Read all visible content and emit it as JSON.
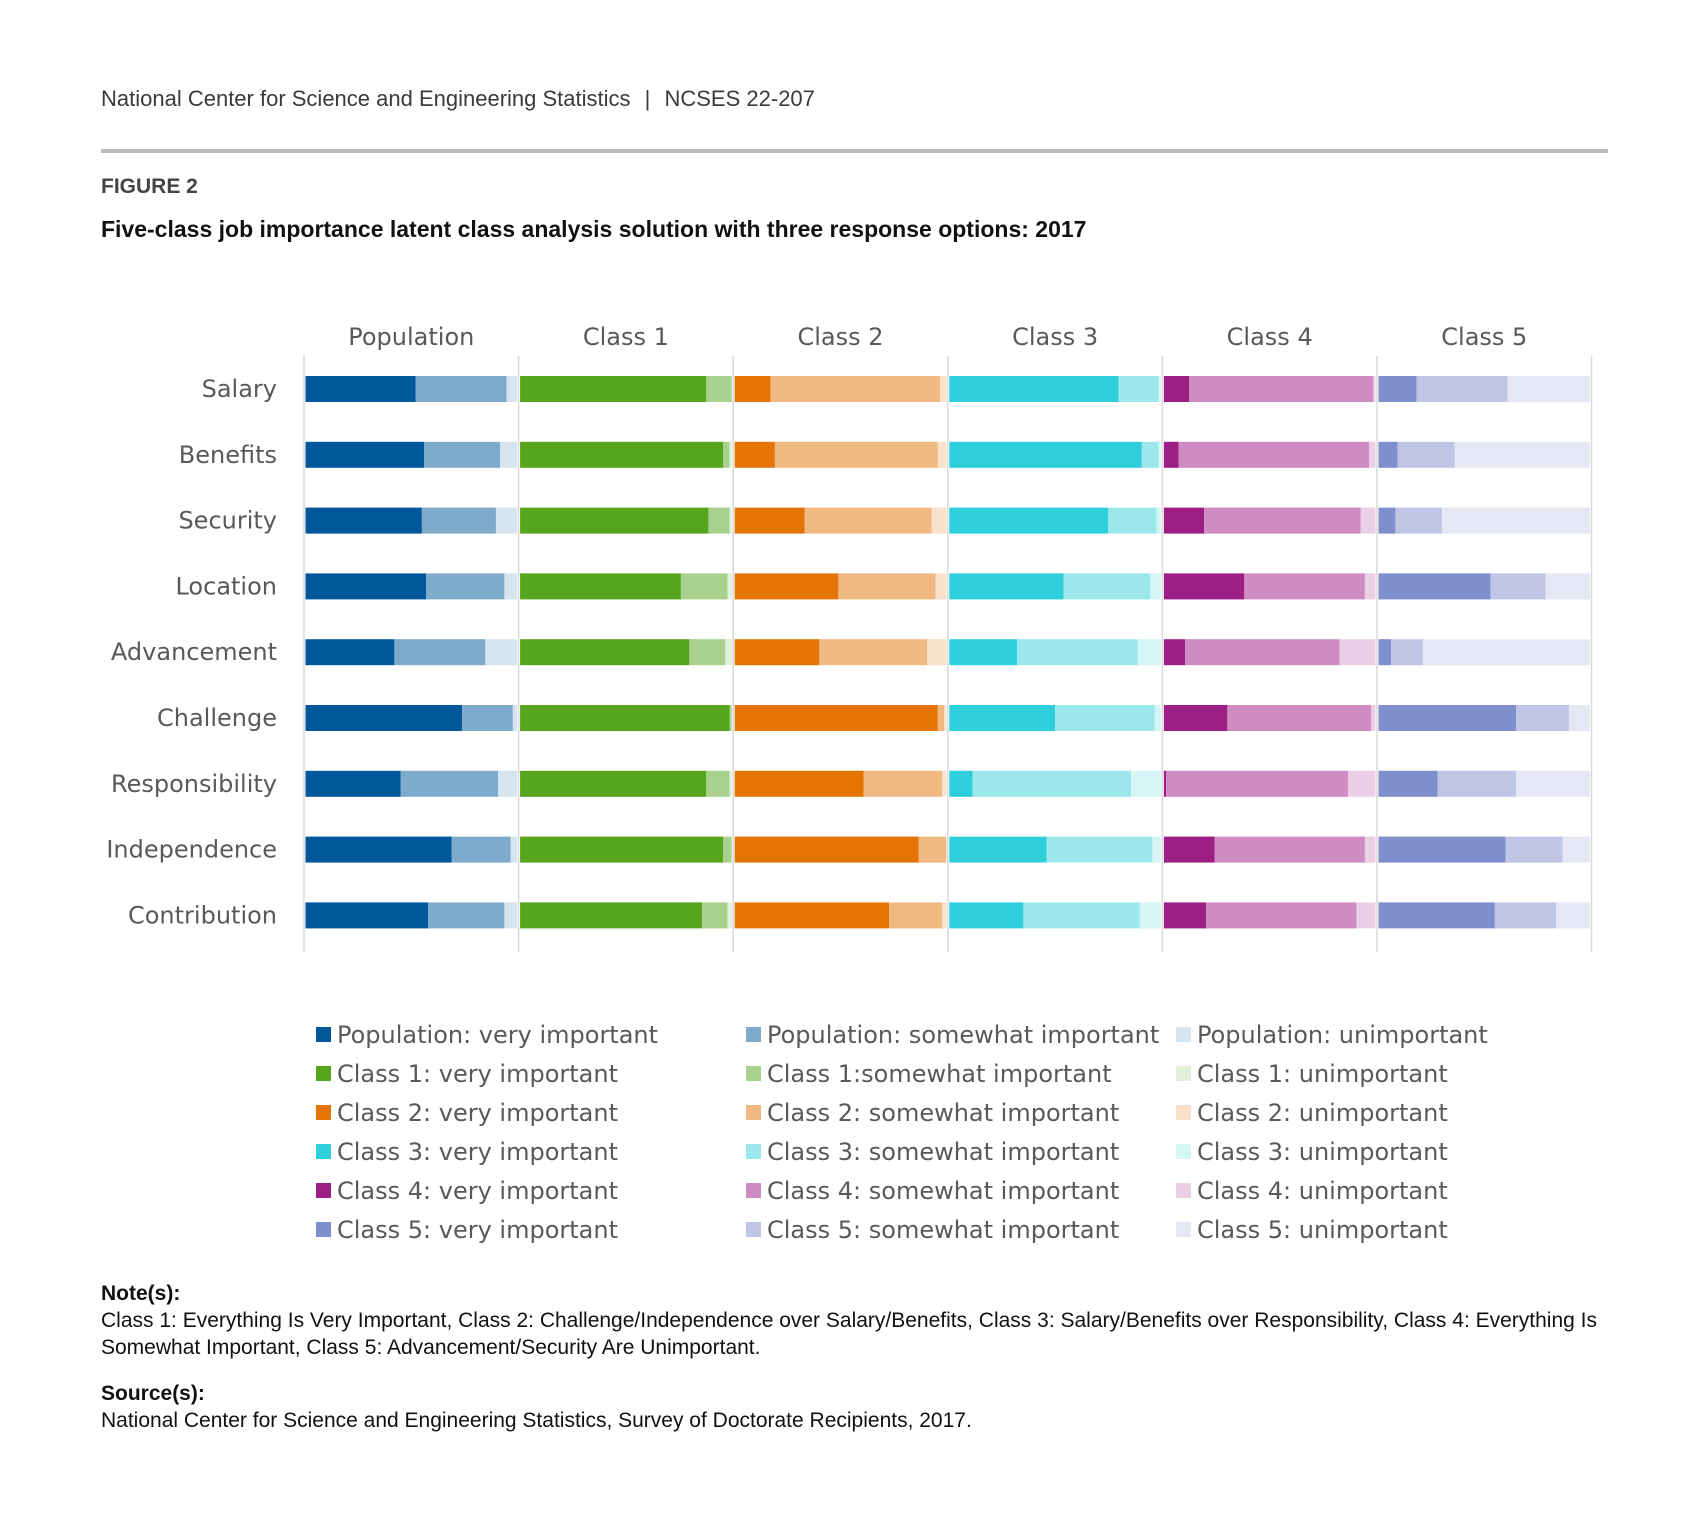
{
  "header": {
    "org": "National Center for Science and Engineering Statistics",
    "separator": "|",
    "report_id": "NCSES 22-207",
    "figure_label": "FIGURE 2",
    "title": "Five-class job importance latent class analysis solution with three response options: 2017"
  },
  "chart_data": {
    "type": "bar",
    "orientation": "horizontal",
    "stacked": true,
    "title": "Five-class job importance latent class analysis solution with three response options: 2017",
    "xlabel": "",
    "ylabel": "",
    "xlim": [
      0,
      1
    ],
    "grid": false,
    "legend_position": "bottom",
    "categories": [
      "Salary",
      "Benefits",
      "Security",
      "Location",
      "Advancement",
      "Challenge",
      "Responsibility",
      "Independence",
      "Contribution"
    ],
    "panels": [
      {
        "name": "Population",
        "colors": {
          "very important": "#00579a",
          "somewhat important": "#7eaacc",
          "unimportant": "#d6e4f0"
        },
        "series": [
          {
            "name": "very important",
            "values": [
              0.52,
              0.56,
              0.55,
              0.57,
              0.42,
              0.74,
              0.45,
              0.69,
              0.58
            ]
          },
          {
            "name": "somewhat important",
            "values": [
              0.43,
              0.36,
              0.35,
              0.37,
              0.43,
              0.24,
              0.46,
              0.28,
              0.36
            ]
          },
          {
            "name": "unimportant",
            "values": [
              0.05,
              0.08,
              0.1,
              0.06,
              0.15,
              0.02,
              0.09,
              0.03,
              0.06
            ]
          }
        ]
      },
      {
        "name": "Class 1",
        "colors": {
          "very important": "#56a51c",
          "somewhat important": "#a8d18d",
          "unimportant": "#e2f0d9"
        },
        "series": [
          {
            "name": "very important",
            "values": [
              0.88,
              0.96,
              0.89,
              0.76,
              0.8,
              0.99,
              0.88,
              0.96,
              0.86
            ]
          },
          {
            "name": "somewhat important",
            "values": [
              0.12,
              0.03,
              0.1,
              0.22,
              0.17,
              0.01,
              0.11,
              0.04,
              0.12
            ]
          },
          {
            "name": "unimportant",
            "values": [
              0.0,
              0.01,
              0.01,
              0.02,
              0.03,
              0.0,
              0.01,
              0.0,
              0.02
            ]
          }
        ]
      },
      {
        "name": "Class 2",
        "colors": {
          "very important": "#e47504",
          "somewhat important": "#f0b882",
          "unimportant": "#f9e0cb"
        },
        "series": [
          {
            "name": "very important",
            "values": [
              0.17,
              0.19,
              0.33,
              0.49,
              0.4,
              0.96,
              0.61,
              0.87,
              0.73
            ]
          },
          {
            "name": "somewhat important",
            "values": [
              0.8,
              0.77,
              0.6,
              0.46,
              0.51,
              0.03,
              0.37,
              0.13,
              0.25
            ]
          },
          {
            "name": "unimportant",
            "values": [
              0.03,
              0.04,
              0.07,
              0.05,
              0.09,
              0.01,
              0.02,
              0.0,
              0.02
            ]
          }
        ]
      },
      {
        "name": "Class 3",
        "colors": {
          "very important": "#2ecfda",
          "somewhat important": "#9be7ec",
          "unimportant": "#d6f5f7"
        },
        "series": [
          {
            "name": "very important",
            "values": [
              0.8,
              0.91,
              0.75,
              0.54,
              0.32,
              0.5,
              0.11,
              0.46,
              0.35
            ]
          },
          {
            "name": "somewhat important",
            "values": [
              0.19,
              0.08,
              0.23,
              0.41,
              0.57,
              0.47,
              0.75,
              0.5,
              0.55
            ]
          },
          {
            "name": "unimportant",
            "values": [
              0.01,
              0.01,
              0.02,
              0.05,
              0.11,
              0.03,
              0.14,
              0.04,
              0.1
            ]
          }
        ]
      },
      {
        "name": "Class 4",
        "colors": {
          "very important": "#9d1e85",
          "somewhat important": "#cf8cc3",
          "unimportant": "#ebcfe6"
        },
        "series": [
          {
            "name": "very important",
            "values": [
              0.12,
              0.07,
              0.19,
              0.38,
              0.1,
              0.3,
              0.01,
              0.24,
              0.2
            ]
          },
          {
            "name": "somewhat important",
            "values": [
              0.87,
              0.9,
              0.74,
              0.57,
              0.73,
              0.68,
              0.86,
              0.71,
              0.71
            ]
          },
          {
            "name": "unimportant",
            "values": [
              0.01,
              0.03,
              0.07,
              0.05,
              0.17,
              0.02,
              0.13,
              0.05,
              0.09
            ]
          }
        ]
      },
      {
        "name": "Class 5",
        "colors": {
          "very important": "#7f8fcd",
          "somewhat important": "#bfc6e5",
          "unimportant": "#e5e7f4"
        },
        "series": [
          {
            "name": "very important",
            "values": [
              0.18,
              0.09,
              0.08,
              0.53,
              0.06,
              0.65,
              0.28,
              0.6,
              0.55
            ]
          },
          {
            "name": "somewhat important",
            "values": [
              0.43,
              0.27,
              0.22,
              0.26,
              0.15,
              0.25,
              0.37,
              0.27,
              0.29
            ]
          },
          {
            "name": "unimportant",
            "values": [
              0.39,
              0.64,
              0.7,
              0.21,
              0.79,
              0.1,
              0.35,
              0.13,
              0.16
            ]
          }
        ]
      }
    ]
  },
  "legend": [
    {
      "label": "Population: very important",
      "color": "#00579a"
    },
    {
      "label": "Population: somewhat important",
      "color": "#7eaacc"
    },
    {
      "label": "Population: unimportant",
      "color": "#d6e4f0"
    },
    {
      "label": "Class 1: very important",
      "color": "#56a51c"
    },
    {
      "label": "Class 1:somewhat important",
      "color": "#a8d18d"
    },
    {
      "label": "Class 1: unimportant",
      "color": "#e2f0d9"
    },
    {
      "label": "Class 2: very important",
      "color": "#e47504"
    },
    {
      "label": "Class 2: somewhat important",
      "color": "#f0b882"
    },
    {
      "label": "Class 2: unimportant",
      "color": "#f9e0cb"
    },
    {
      "label": "Class 3: very important",
      "color": "#2ecfda"
    },
    {
      "label": "Class 3: somewhat important",
      "color": "#9be7ec"
    },
    {
      "label": "Class 3: unimportant",
      "color": "#d6f5f7"
    },
    {
      "label": "Class 4: very important",
      "color": "#9d1e85"
    },
    {
      "label": "Class 4: somewhat important",
      "color": "#cf8cc3"
    },
    {
      "label": "Class 4: unimportant",
      "color": "#ebcfe6"
    },
    {
      "label": "Class 5: very important",
      "color": "#7f8fcd"
    },
    {
      "label": "Class 5: somewhat important",
      "color": "#bfc6e5"
    },
    {
      "label": "Class 5: unimportant",
      "color": "#e5e7f4"
    }
  ],
  "notes": {
    "notes_heading": "Note(s):",
    "notes_text": "Class 1: Everything Is Very Important, Class 2: Challenge/Independence over Salary/Benefits, Class 3: Salary/Benefits over Responsibility, Class 4: Everything Is Somewhat Important, Class 5: Advancement/Security Are Unimportant.",
    "source_heading": "Source(s):",
    "source_text": "National Center for Science and Engineering Statistics, Survey of Doctorate Recipients, 2017."
  }
}
